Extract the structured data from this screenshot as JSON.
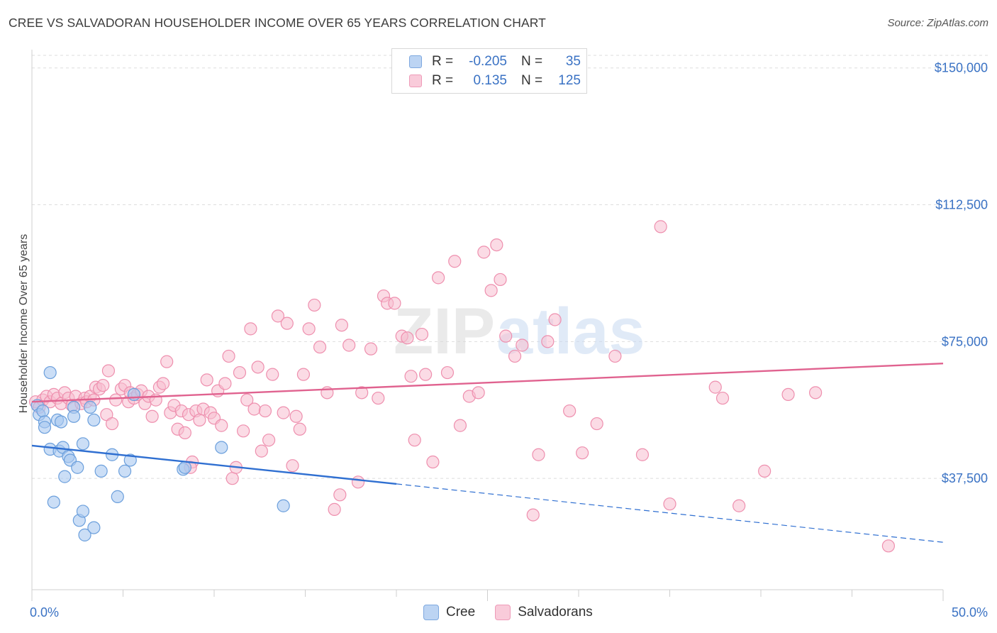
{
  "header": {
    "title": "CREE VS SALVADORAN HOUSEHOLDER INCOME OVER 65 YEARS CORRELATION CHART",
    "source": "Source: ZipAtlas.com"
  },
  "legend": {
    "rows": [
      {
        "r_label": "R =",
        "r_value": "-0.205",
        "n_label": "N =",
        "n_value": "35"
      },
      {
        "r_label": "R =",
        "r_value": "0.135",
        "n_label": "N =",
        "n_value": "125"
      }
    ]
  },
  "bottom_legend": {
    "cree": "Cree",
    "salvadorans": "Salvadorans"
  },
  "watermark": {
    "zip": "ZIP",
    "atlas": "atlas"
  },
  "colors": {
    "cree_fill": "#a9c8f0",
    "cree_stroke": "#6b9fdc",
    "cree_line": "#2f6fd1",
    "salv_fill": "#f7bdd0",
    "salv_stroke": "#ee8fae",
    "salv_line": "#e0628f",
    "axis_text": "#3a72c4",
    "grid": "#dddddd"
  },
  "chart_data": {
    "type": "scatter",
    "title": "CREE VS SALVADORAN HOUSEHOLDER INCOME OVER 65 YEARS CORRELATION CHART",
    "ylabel": "Householder Income Over 65 years",
    "xlabel": "",
    "xlim": [
      0,
      50
    ],
    "ylim": [
      7000,
      155000
    ],
    "x_tick_labels": [
      {
        "value": 0,
        "label": "0.0%"
      },
      {
        "value": 50,
        "label": "50.0%"
      }
    ],
    "y_ticks": [
      {
        "value": 37500,
        "label": "$37,500"
      },
      {
        "value": 75000,
        "label": "$75,000"
      },
      {
        "value": 112500,
        "label": "$112,500"
      },
      {
        "value": 150000,
        "label": "$150,000"
      }
    ],
    "series": [
      {
        "name": "Cree",
        "r": -0.205,
        "n": 35,
        "trend": {
          "x0": 0,
          "y0": 46500,
          "x1": 20,
          "y1": 36000,
          "dash_to_x": 50,
          "dash_to_y": 20000
        },
        "points": [
          [
            0.3,
            57500
          ],
          [
            0.4,
            55000
          ],
          [
            0.6,
            56000
          ],
          [
            0.7,
            53000
          ],
          [
            0.7,
            51500
          ],
          [
            1.0,
            45500
          ],
          [
            1.0,
            66500
          ],
          [
            1.2,
            31000
          ],
          [
            1.4,
            53500
          ],
          [
            1.5,
            45000
          ],
          [
            1.6,
            53000
          ],
          [
            1.7,
            46000
          ],
          [
            1.8,
            38000
          ],
          [
            2.0,
            43500
          ],
          [
            2.1,
            42500
          ],
          [
            2.3,
            57000
          ],
          [
            2.3,
            54500
          ],
          [
            2.5,
            40500
          ],
          [
            2.6,
            26000
          ],
          [
            2.8,
            47000
          ],
          [
            2.8,
            28500
          ],
          [
            2.9,
            22000
          ],
          [
            3.2,
            57000
          ],
          [
            3.4,
            53500
          ],
          [
            3.4,
            24000
          ],
          [
            3.8,
            39500
          ],
          [
            4.4,
            44000
          ],
          [
            4.7,
            32500
          ],
          [
            5.1,
            39500
          ],
          [
            5.4,
            42500
          ],
          [
            5.6,
            60500
          ],
          [
            8.3,
            40000
          ],
          [
            8.4,
            40500
          ],
          [
            10.4,
            46000
          ],
          [
            13.8,
            30000
          ]
        ]
      },
      {
        "name": "Salvadorans",
        "r": 0.135,
        "n": 125,
        "trend": {
          "x0": 0,
          "y0": 58500,
          "x1": 50,
          "y1": 69000
        },
        "points": [
          [
            0.2,
            58500
          ],
          [
            0.4,
            57000
          ],
          [
            0.6,
            59000
          ],
          [
            0.8,
            60000
          ],
          [
            1.0,
            58500
          ],
          [
            1.2,
            60500
          ],
          [
            1.4,
            59500
          ],
          [
            1.6,
            58000
          ],
          [
            1.8,
            61000
          ],
          [
            2.0,
            59500
          ],
          [
            2.2,
            57500
          ],
          [
            2.4,
            60000
          ],
          [
            2.7,
            58000
          ],
          [
            2.9,
            59500
          ],
          [
            3.0,
            58500
          ],
          [
            3.2,
            60000
          ],
          [
            3.4,
            59000
          ],
          [
            3.5,
            62500
          ],
          [
            3.7,
            62000
          ],
          [
            3.9,
            63000
          ],
          [
            4.1,
            55000
          ],
          [
            4.2,
            67000
          ],
          [
            4.4,
            52500
          ],
          [
            4.6,
            59000
          ],
          [
            4.9,
            62000
          ],
          [
            5.1,
            63000
          ],
          [
            5.3,
            58500
          ],
          [
            5.4,
            61000
          ],
          [
            5.6,
            59500
          ],
          [
            5.8,
            60500
          ],
          [
            6.0,
            61500
          ],
          [
            6.2,
            58000
          ],
          [
            6.4,
            60000
          ],
          [
            6.6,
            54500
          ],
          [
            6.8,
            59000
          ],
          [
            7.0,
            62500
          ],
          [
            7.2,
            63500
          ],
          [
            7.4,
            69500
          ],
          [
            7.6,
            55500
          ],
          [
            7.8,
            57500
          ],
          [
            8.0,
            51000
          ],
          [
            8.2,
            56000
          ],
          [
            8.4,
            50000
          ],
          [
            8.6,
            55000
          ],
          [
            8.8,
            42000
          ],
          [
            8.7,
            40500
          ],
          [
            9.0,
            56000
          ],
          [
            9.2,
            53500
          ],
          [
            9.4,
            56500
          ],
          [
            9.6,
            64500
          ],
          [
            9.8,
            55500
          ],
          [
            10.0,
            54000
          ],
          [
            10.2,
            61500
          ],
          [
            10.4,
            52000
          ],
          [
            10.6,
            63500
          ],
          [
            10.8,
            71000
          ],
          [
            11.0,
            37500
          ],
          [
            11.2,
            40500
          ],
          [
            11.4,
            66500
          ],
          [
            11.6,
            50500
          ],
          [
            11.8,
            59000
          ],
          [
            12.0,
            78500
          ],
          [
            12.2,
            56500
          ],
          [
            12.4,
            68000
          ],
          [
            12.6,
            45000
          ],
          [
            12.8,
            56000
          ],
          [
            13.0,
            48000
          ],
          [
            13.2,
            66000
          ],
          [
            13.5,
            82000
          ],
          [
            13.8,
            55500
          ],
          [
            14.0,
            80000
          ],
          [
            14.3,
            41000
          ],
          [
            14.5,
            54500
          ],
          [
            14.7,
            51000
          ],
          [
            14.9,
            66000
          ],
          [
            15.2,
            78500
          ],
          [
            15.5,
            85000
          ],
          [
            15.8,
            73500
          ],
          [
            16.2,
            61000
          ],
          [
            16.6,
            29000
          ],
          [
            16.9,
            33000
          ],
          [
            17.0,
            79500
          ],
          [
            17.4,
            74000
          ],
          [
            17.9,
            36500
          ],
          [
            18.1,
            61000
          ],
          [
            18.6,
            73000
          ],
          [
            19.0,
            59500
          ],
          [
            19.3,
            87500
          ],
          [
            19.5,
            85500
          ],
          [
            19.9,
            85500
          ],
          [
            20.3,
            76500
          ],
          [
            20.6,
            76000
          ],
          [
            20.8,
            65500
          ],
          [
            21.0,
            48000
          ],
          [
            21.4,
            77000
          ],
          [
            21.6,
            66000
          ],
          [
            22.0,
            42000
          ],
          [
            22.3,
            92500
          ],
          [
            22.8,
            66500
          ],
          [
            23.2,
            97000
          ],
          [
            23.5,
            52000
          ],
          [
            24.0,
            60000
          ],
          [
            24.5,
            61000
          ],
          [
            24.8,
            99500
          ],
          [
            25.2,
            89000
          ],
          [
            25.5,
            101500
          ],
          [
            25.7,
            92000
          ],
          [
            26.0,
            76500
          ],
          [
            26.5,
            71000
          ],
          [
            26.9,
            74000
          ],
          [
            27.5,
            27500
          ],
          [
            27.8,
            44000
          ],
          [
            28.3,
            75000
          ],
          [
            28.7,
            81000
          ],
          [
            29.5,
            56000
          ],
          [
            30.2,
            44500
          ],
          [
            31.0,
            52500
          ],
          [
            32.0,
            71000
          ],
          [
            33.5,
            44000
          ],
          [
            34.5,
            106500
          ],
          [
            35.0,
            30500
          ],
          [
            37.5,
            62500
          ],
          [
            37.9,
            59500
          ],
          [
            38.8,
            30000
          ],
          [
            40.2,
            39500
          ],
          [
            41.5,
            60500
          ],
          [
            43.0,
            61000
          ],
          [
            47.0,
            19000
          ]
        ]
      }
    ]
  }
}
